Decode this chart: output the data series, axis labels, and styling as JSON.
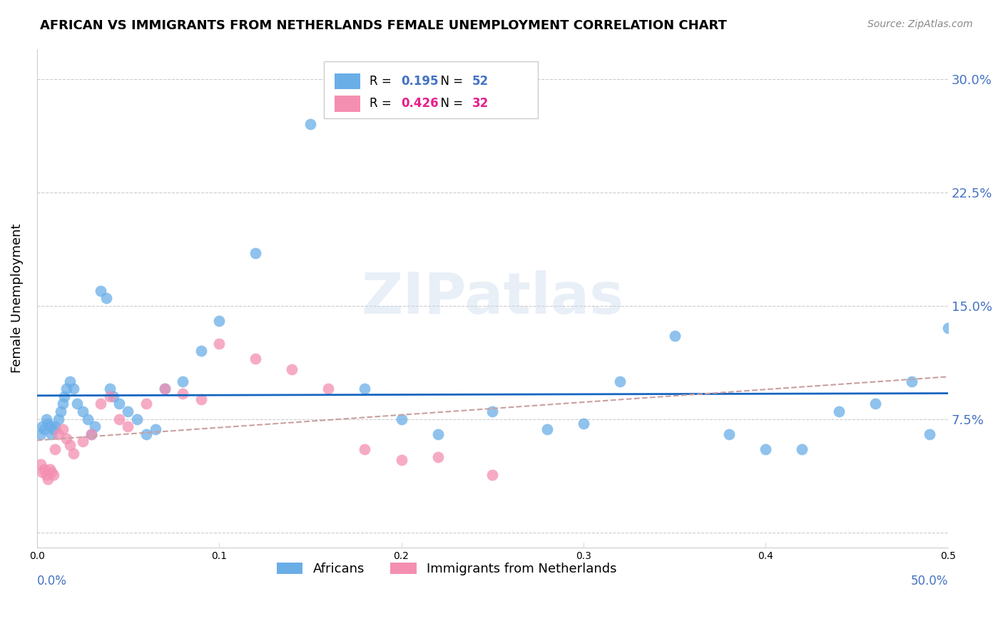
{
  "title": "AFRICAN VS IMMIGRANTS FROM NETHERLANDS FEMALE UNEMPLOYMENT CORRELATION CHART",
  "source": "Source: ZipAtlas.com",
  "ylabel": "Female Unemployment",
  "yticks": [
    0.0,
    0.075,
    0.15,
    0.225,
    0.3
  ],
  "ytick_labels": [
    "",
    "7.5%",
    "15.0%",
    "22.5%",
    "30.0%"
  ],
  "xlim": [
    0.0,
    0.5
  ],
  "ylim": [
    -0.01,
    0.32
  ],
  "watermark": "ZIPatlas",
  "africans_R": "0.195",
  "africans_N": "52",
  "netherlands_R": "0.426",
  "netherlands_N": "32",
  "africans_color": "#6aaee8",
  "netherlands_color": "#f48fb1",
  "line_africans_color": "#1565c0",
  "line_netherlands_color": "#c8a0a0",
  "africans_x": [
    0.002,
    0.003,
    0.004,
    0.005,
    0.006,
    0.007,
    0.008,
    0.009,
    0.01,
    0.012,
    0.013,
    0.014,
    0.015,
    0.016,
    0.018,
    0.02,
    0.022,
    0.025,
    0.028,
    0.03,
    0.032,
    0.035,
    0.038,
    0.04,
    0.042,
    0.045,
    0.05,
    0.055,
    0.06,
    0.065,
    0.07,
    0.08,
    0.09,
    0.1,
    0.12,
    0.15,
    0.18,
    0.2,
    0.22,
    0.25,
    0.28,
    0.3,
    0.32,
    0.35,
    0.38,
    0.4,
    0.42,
    0.44,
    0.46,
    0.48,
    0.49,
    0.5
  ],
  "africans_y": [
    0.065,
    0.07,
    0.068,
    0.075,
    0.072,
    0.07,
    0.065,
    0.068,
    0.07,
    0.075,
    0.08,
    0.085,
    0.09,
    0.095,
    0.1,
    0.095,
    0.085,
    0.08,
    0.075,
    0.065,
    0.07,
    0.16,
    0.155,
    0.095,
    0.09,
    0.085,
    0.08,
    0.075,
    0.065,
    0.068,
    0.095,
    0.1,
    0.12,
    0.14,
    0.185,
    0.27,
    0.095,
    0.075,
    0.065,
    0.08,
    0.068,
    0.072,
    0.1,
    0.13,
    0.065,
    0.055,
    0.055,
    0.08,
    0.085,
    0.1,
    0.065,
    0.135
  ],
  "netherlands_x": [
    0.002,
    0.003,
    0.004,
    0.005,
    0.006,
    0.007,
    0.008,
    0.009,
    0.01,
    0.012,
    0.014,
    0.016,
    0.018,
    0.02,
    0.025,
    0.03,
    0.035,
    0.04,
    0.045,
    0.05,
    0.06,
    0.07,
    0.08,
    0.09,
    0.1,
    0.12,
    0.14,
    0.16,
    0.18,
    0.2,
    0.22,
    0.25
  ],
  "netherlands_y": [
    0.045,
    0.04,
    0.042,
    0.038,
    0.035,
    0.042,
    0.04,
    0.038,
    0.055,
    0.065,
    0.068,
    0.062,
    0.058,
    0.052,
    0.06,
    0.065,
    0.085,
    0.09,
    0.075,
    0.07,
    0.085,
    0.095,
    0.092,
    0.088,
    0.125,
    0.115,
    0.108,
    0.095,
    0.055,
    0.048,
    0.05,
    0.038
  ]
}
